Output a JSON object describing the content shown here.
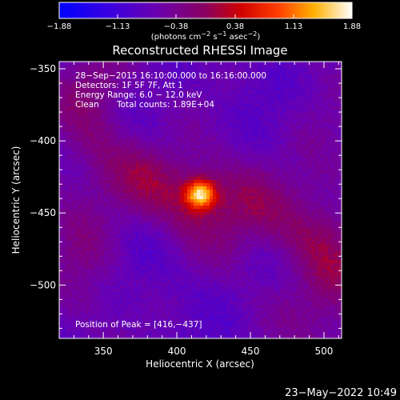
{
  "chart_data": {
    "type": "heatmap",
    "title": "Reconstructed RHESSI Image",
    "xlabel": "Heliocentric X (arcsec)",
    "ylabel": "Heliocentric Y (arcsec)",
    "xlim": [
      320,
      512
    ],
    "ylim": [
      -537,
      -345
    ],
    "x_ticks": [
      350,
      400,
      450,
      500
    ],
    "y_ticks": [
      -350,
      -400,
      -450,
      -500
    ],
    "x_tick_labels": [
      "350",
      "400",
      "450",
      "500"
    ],
    "y_tick_labels": [
      "−350",
      "−400",
      "−450",
      "−500"
    ],
    "colorbar": {
      "min": -1.88,
      "max": 1.88,
      "tick_values": [
        -1.88,
        -1.13,
        -0.38,
        0.38,
        1.13,
        1.88
      ],
      "tick_labels": [
        "−1.88",
        "−1.13",
        "−0.38",
        "0.38",
        "1.13",
        "1.88"
      ],
      "units_prefix": "(photons cm",
      "units_exp1": "−2",
      "units_mid": " s",
      "units_exp2": "−1",
      "units_mid2": " asec",
      "units_exp3": "−2",
      "units_suffix": ")"
    },
    "annotations": {
      "time_range": "28−Sep−2015 16:10:00.000 to 16:16:00.000",
      "detectors": "Detectors: 1F 5F 7F, Att 1",
      "energy": "Energy Range: 6.0 − 12.0 keV",
      "clean": "Clean",
      "total_counts": "Total counts: 1.89E+04",
      "peak": "Position of Peak = [416,−437]"
    },
    "peak_position": [
      416,
      -437
    ],
    "peak_value": 1.88,
    "footer_date": "23−May−2022 10:49"
  }
}
